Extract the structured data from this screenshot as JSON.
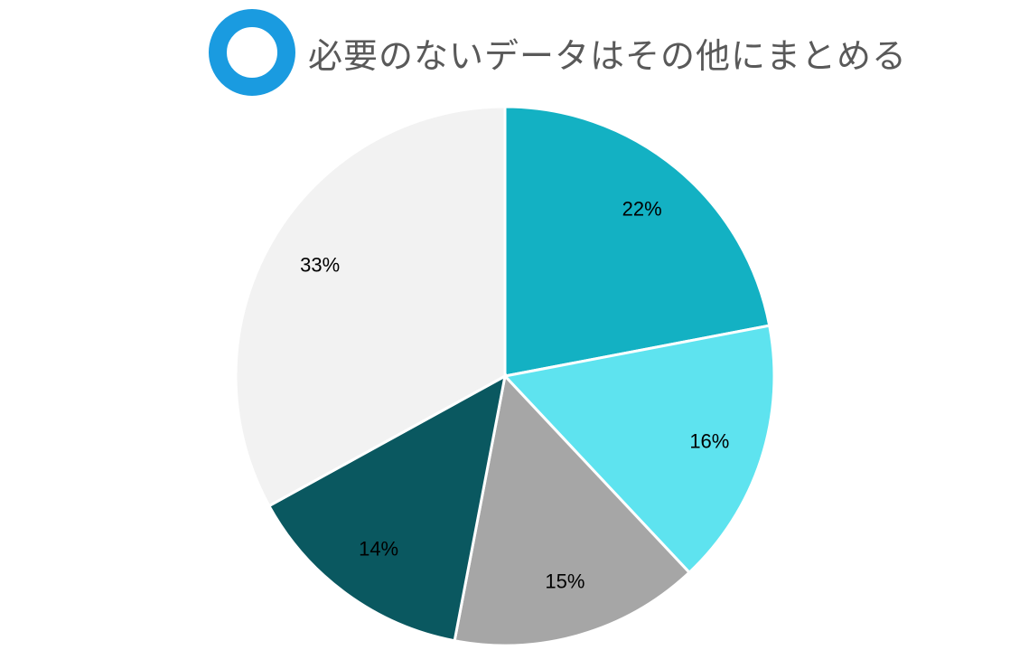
{
  "header": {
    "title": "必要のないデータはその他にまとめる",
    "icon": "ring-icon",
    "icon_color": "#1a9be0"
  },
  "chart_data": {
    "type": "pie",
    "title": "必要のないデータはその他にまとめる",
    "slices": [
      {
        "value": 22,
        "label": "22%",
        "color": "#13b1c3"
      },
      {
        "value": 16,
        "label": "16%",
        "color": "#5ee3ef"
      },
      {
        "value": 15,
        "label": "15%",
        "color": "#a6a6a6"
      },
      {
        "value": 14,
        "label": "14%",
        "color": "#0a5860"
      },
      {
        "value": 33,
        "label": "33%",
        "color": "#f2f2f2"
      }
    ],
    "start_angle": "12 o'clock",
    "direction": "clockwise",
    "legend": "none"
  }
}
